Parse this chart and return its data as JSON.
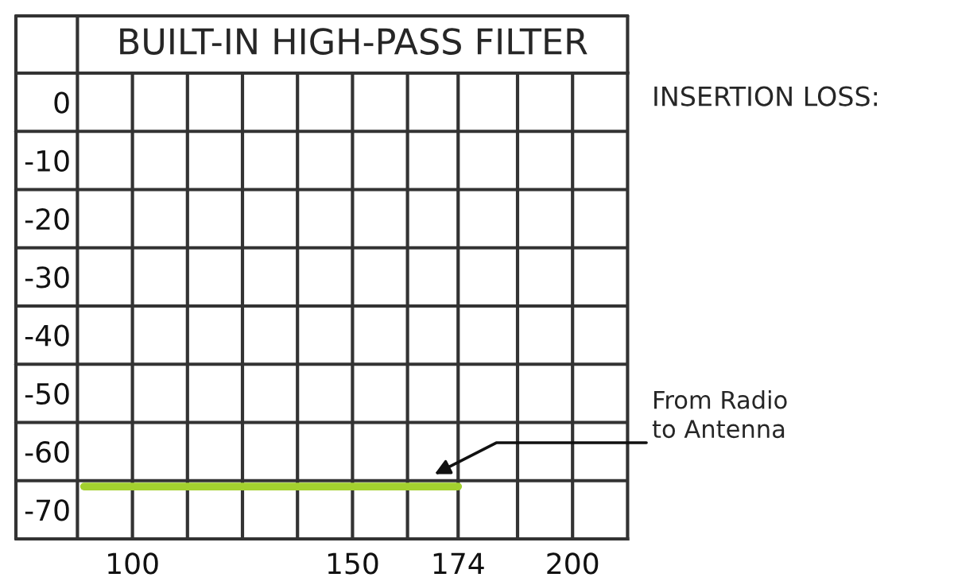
{
  "chart_data": {
    "type": "line",
    "title": "BUILT-IN HIGH-PASS FILTER",
    "x": [
      89,
      174
    ],
    "series": [
      {
        "color": "#a3d12f",
        "values": [
          -61,
          -61
        ]
      }
    ],
    "xlim": [
      87.5,
      212.5
    ],
    "ylim": [
      -70,
      10
    ],
    "xticks": [
      100,
      {
        "value": 112.5,
        "label": null
      },
      {
        "value": 125,
        "label": null
      },
      {
        "value": 137.5,
        "label": null
      },
      150,
      {
        "value": 162.5,
        "label": null
      },
      174,
      {
        "value": 187.5,
        "label": null
      },
      200
    ],
    "yticks": [
      0,
      -10,
      -20,
      -30,
      -40,
      -50,
      -60,
      -70
    ],
    "grid": true,
    "marker": "none",
    "line_style": "solid",
    "annotations": [
      "INSERTION LOSS:",
      "From Radio\nto Antenna"
    ]
  }
}
